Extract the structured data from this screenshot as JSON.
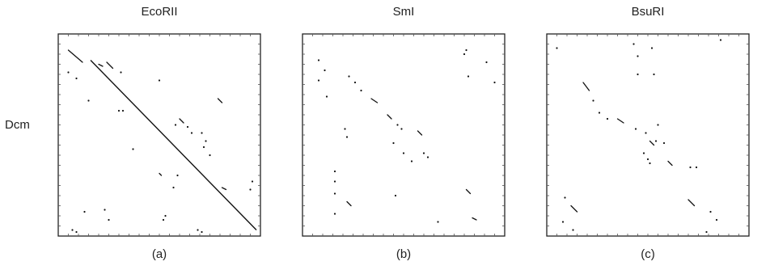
{
  "figure": {
    "row_label": "Dcm"
  },
  "chart_data": [
    {
      "type": "scatter",
      "title": "EcoRII",
      "sublabel": "(a)",
      "ylabel": "Dcm",
      "xlim": [
        0,
        1
      ],
      "ylim": [
        0,
        1
      ],
      "grid": false,
      "diagonal": [
        [
          0.16,
          0.87
        ],
        [
          0.98,
          0.03
        ]
      ],
      "segments": [
        [
          [
            0.05,
            0.92
          ],
          [
            0.12,
            0.86
          ]
        ],
        [
          [
            0.24,
            0.86
          ],
          [
            0.27,
            0.83
          ]
        ],
        [
          [
            0.2,
            0.85
          ],
          [
            0.22,
            0.84
          ]
        ],
        [
          [
            0.79,
            0.68
          ],
          [
            0.81,
            0.66
          ]
        ],
        [
          [
            0.6,
            0.58
          ],
          [
            0.62,
            0.56
          ]
        ],
        [
          [
            0.5,
            0.31
          ],
          [
            0.51,
            0.3
          ]
        ],
        [
          [
            0.81,
            0.24
          ],
          [
            0.83,
            0.23
          ]
        ]
      ],
      "points": [
        [
          0.05,
          0.81
        ],
        [
          0.09,
          0.78
        ],
        [
          0.15,
          0.67
        ],
        [
          0.3,
          0.62
        ],
        [
          0.32,
          0.62
        ],
        [
          0.5,
          0.77
        ],
        [
          0.31,
          0.81
        ],
        [
          0.58,
          0.55
        ],
        [
          0.64,
          0.54
        ],
        [
          0.66,
          0.51
        ],
        [
          0.71,
          0.51
        ],
        [
          0.73,
          0.47
        ],
        [
          0.72,
          0.44
        ],
        [
          0.37,
          0.43
        ],
        [
          0.75,
          0.4
        ],
        [
          0.59,
          0.3
        ],
        [
          0.57,
          0.24
        ],
        [
          0.96,
          0.27
        ],
        [
          0.95,
          0.23
        ],
        [
          0.13,
          0.12
        ],
        [
          0.23,
          0.13
        ],
        [
          0.25,
          0.08
        ],
        [
          0.52,
          0.08
        ],
        [
          0.53,
          0.1
        ],
        [
          0.69,
          0.03
        ],
        [
          0.71,
          0.02
        ],
        [
          0.07,
          0.03
        ],
        [
          0.09,
          0.02
        ]
      ]
    },
    {
      "type": "scatter",
      "title": "SmI",
      "sublabel": "(b)",
      "xlim": [
        0,
        1
      ],
      "ylim": [
        0,
        1
      ],
      "grid": false,
      "segments": [
        [
          [
            0.34,
            0.68
          ],
          [
            0.37,
            0.66
          ]
        ],
        [
          [
            0.42,
            0.6
          ],
          [
            0.44,
            0.58
          ]
        ],
        [
          [
            0.57,
            0.52
          ],
          [
            0.59,
            0.5
          ]
        ],
        [
          [
            0.22,
            0.17
          ],
          [
            0.24,
            0.15
          ]
        ],
        [
          [
            0.84,
            0.09
          ],
          [
            0.86,
            0.08
          ]
        ],
        [
          [
            0.81,
            0.23
          ],
          [
            0.83,
            0.21
          ]
        ]
      ],
      "points": [
        [
          0.08,
          0.87
        ],
        [
          0.11,
          0.82
        ],
        [
          0.23,
          0.79
        ],
        [
          0.26,
          0.76
        ],
        [
          0.08,
          0.77
        ],
        [
          0.12,
          0.69
        ],
        [
          0.29,
          0.72
        ],
        [
          0.81,
          0.92
        ],
        [
          0.82,
          0.79
        ],
        [
          0.95,
          0.76
        ],
        [
          0.8,
          0.9
        ],
        [
          0.21,
          0.53
        ],
        [
          0.22,
          0.49
        ],
        [
          0.47,
          0.55
        ],
        [
          0.49,
          0.53
        ],
        [
          0.45,
          0.46
        ],
        [
          0.5,
          0.41
        ],
        [
          0.54,
          0.37
        ],
        [
          0.6,
          0.41
        ],
        [
          0.62,
          0.39
        ],
        [
          0.16,
          0.32
        ],
        [
          0.16,
          0.27
        ],
        [
          0.16,
          0.21
        ],
        [
          0.16,
          0.11
        ],
        [
          0.46,
          0.2
        ],
        [
          0.67,
          0.07
        ],
        [
          0.91,
          0.86
        ]
      ]
    },
    {
      "type": "scatter",
      "title": "BsuRI",
      "sublabel": "(c)",
      "xlim": [
        0,
        1
      ],
      "ylim": [
        0,
        1
      ],
      "grid": false,
      "segments": [
        [
          [
            0.18,
            0.76
          ],
          [
            0.21,
            0.72
          ]
        ],
        [
          [
            0.35,
            0.58
          ],
          [
            0.38,
            0.56
          ]
        ],
        [
          [
            0.51,
            0.47
          ],
          [
            0.53,
            0.45
          ]
        ],
        [
          [
            0.6,
            0.37
          ],
          [
            0.62,
            0.35
          ]
        ],
        [
          [
            0.7,
            0.18
          ],
          [
            0.73,
            0.15
          ]
        ],
        [
          [
            0.12,
            0.15
          ],
          [
            0.15,
            0.12
          ]
        ]
      ],
      "points": [
        [
          0.05,
          0.93
        ],
        [
          0.43,
          0.95
        ],
        [
          0.45,
          0.89
        ],
        [
          0.52,
          0.93
        ],
        [
          0.53,
          0.8
        ],
        [
          0.45,
          0.8
        ],
        [
          0.86,
          0.97
        ],
        [
          0.23,
          0.67
        ],
        [
          0.26,
          0.61
        ],
        [
          0.3,
          0.58
        ],
        [
          0.44,
          0.53
        ],
        [
          0.49,
          0.51
        ],
        [
          0.55,
          0.55
        ],
        [
          0.54,
          0.47
        ],
        [
          0.58,
          0.46
        ],
        [
          0.48,
          0.41
        ],
        [
          0.5,
          0.38
        ],
        [
          0.51,
          0.36
        ],
        [
          0.71,
          0.34
        ],
        [
          0.74,
          0.34
        ],
        [
          0.09,
          0.19
        ],
        [
          0.81,
          0.12
        ],
        [
          0.84,
          0.08
        ],
        [
          0.08,
          0.07
        ],
        [
          0.13,
          0.03
        ],
        [
          0.79,
          0.02
        ]
      ]
    }
  ]
}
